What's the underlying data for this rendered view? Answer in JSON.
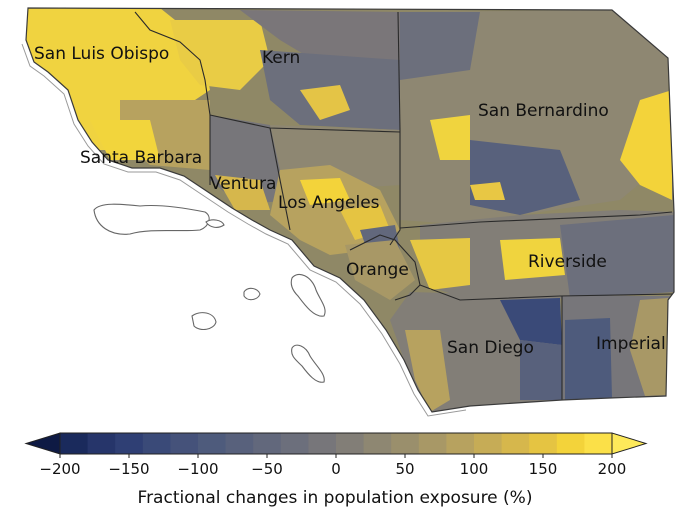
{
  "map": {
    "counties": [
      {
        "name": "San Luis Obispo"
      },
      {
        "name": "Kern"
      },
      {
        "name": "San Bernardino"
      },
      {
        "name": "Santa Barbara"
      },
      {
        "name": "Ventura"
      },
      {
        "name": "Los Angeles"
      },
      {
        "name": "Orange"
      },
      {
        "name": "Riverside"
      },
      {
        "name": "San Diego"
      },
      {
        "name": "Imperial"
      }
    ]
  },
  "colorbar": {
    "title": "Fractional changes in population exposure (%)",
    "min": -200,
    "max": 200,
    "extend": "both",
    "ticks": [
      "−200",
      "−150",
      "−100",
      "−50",
      "0",
      "50",
      "100",
      "150",
      "200"
    ],
    "colors": [
      "#1a2a5c",
      "#26356a",
      "#2f3f74",
      "#3a4a78",
      "#45527a",
      "#4e5b7c",
      "#58617c",
      "#62687c",
      "#6c6f7c",
      "#77767a",
      "#827e77",
      "#8e8772",
      "#9a8f6c",
      "#a89866",
      "#b7a25f",
      "#c6ac56",
      "#d6b74c",
      "#e5c442",
      "#f3d33a",
      "#fbe048"
    ],
    "extend_low_color": "#0e1a44",
    "extend_high_color": "#fde95a"
  }
}
